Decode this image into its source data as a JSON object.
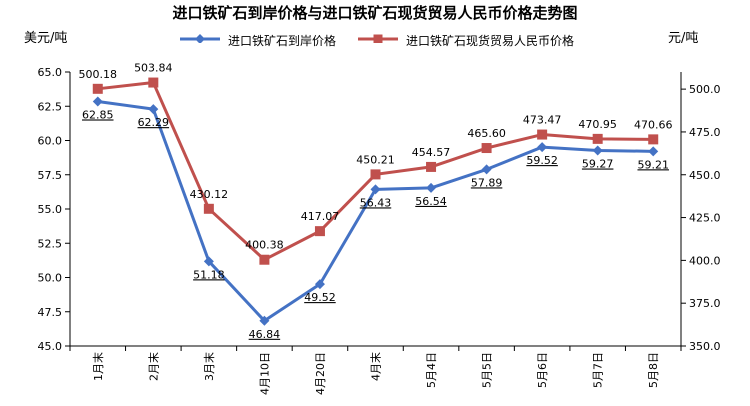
{
  "chart_data": {
    "type": "line",
    "title": "进口铁矿石到岸价格与进口铁矿石现货贸易人民币价格走势图",
    "ylabel_left": "美元/吨",
    "ylabel_right": "元/吨",
    "categories": [
      "1月末",
      "2月末",
      "3月末",
      "4月10日",
      "4月20日",
      "4月末",
      "5月4日",
      "5月5日",
      "5月6日",
      "5月7日",
      "5月8日"
    ],
    "ylim_left": [
      45.0,
      65.0
    ],
    "yticks_left": [
      "45.0",
      "47.5",
      "50.0",
      "52.5",
      "55.0",
      "57.5",
      "60.0",
      "62.5",
      "65.0"
    ],
    "ylim_right": [
      350.0,
      510.0
    ],
    "yticks_right": [
      "350.0",
      "375.0",
      "400.0",
      "425.0",
      "450.0",
      "475.0",
      "500.0"
    ],
    "grid": false,
    "legend_position": "top",
    "series": [
      {
        "name": "进口铁矿石到岸价格",
        "axis": "left",
        "color": "#4472C4",
        "marker": "diamond",
        "values": [
          62.85,
          62.29,
          51.18,
          46.84,
          49.52,
          56.43,
          56.54,
          57.89,
          59.52,
          59.27,
          59.21
        ],
        "labels": [
          "62.85",
          "62.29",
          "51.18",
          "46.84",
          "49.52",
          "56.43",
          "56.54",
          "57.89",
          "59.52",
          "59.27",
          "59.21"
        ]
      },
      {
        "name": "进口铁矿石现货贸易人民币价格",
        "axis": "right",
        "color": "#C0504D",
        "marker": "square",
        "values": [
          500.18,
          503.84,
          430.12,
          400.38,
          417.07,
          450.21,
          454.57,
          465.6,
          473.47,
          470.95,
          470.66
        ],
        "labels": [
          "500.18",
          "503.84",
          "430.12",
          "400.38",
          "417.07",
          "450.21",
          "454.57",
          "465.60",
          "473.47",
          "470.95",
          "470.66"
        ]
      }
    ]
  }
}
